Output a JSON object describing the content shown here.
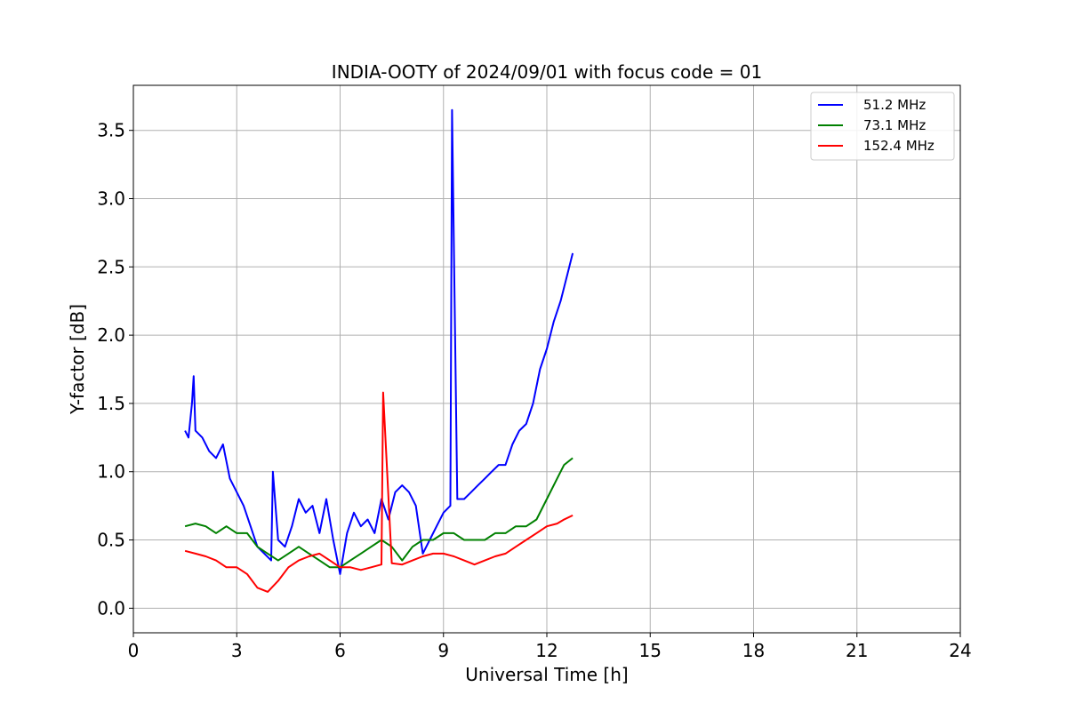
{
  "chart_data": {
    "type": "line",
    "title": "INDIA-OOTY of 2024/09/01 with focus code = 01",
    "xlabel": "Universal Time [h]",
    "ylabel": "Y-factor [dB]",
    "xlim": [
      0,
      24
    ],
    "ylim": [
      -0.18,
      3.83
    ],
    "xticks": [
      0,
      3,
      6,
      9,
      12,
      15,
      18,
      21,
      24
    ],
    "xtick_labels": [
      "0",
      "3",
      "6",
      "9",
      "12",
      "15",
      "18",
      "21",
      "24"
    ],
    "yticks": [
      0.0,
      0.5,
      1.0,
      1.5,
      2.0,
      2.5,
      3.0,
      3.5
    ],
    "ytick_labels": [
      "0.0",
      "0.5",
      "1.0",
      "1.5",
      "2.0",
      "2.5",
      "3.0",
      "3.5"
    ],
    "grid": true,
    "legend_position": "top-right",
    "series": [
      {
        "name": " 51.2 MHz",
        "color": "#0000ff",
        "x": [
          1.5,
          1.6,
          1.7,
          1.75,
          1.8,
          2.0,
          2.2,
          2.4,
          2.6,
          2.8,
          3.0,
          3.2,
          3.4,
          3.6,
          3.8,
          4.0,
          4.05,
          4.2,
          4.4,
          4.6,
          4.8,
          5.0,
          5.2,
          5.4,
          5.6,
          5.8,
          6.0,
          6.2,
          6.4,
          6.6,
          6.8,
          7.0,
          7.2,
          7.4,
          7.6,
          7.8,
          8.0,
          8.2,
          8.4,
          8.6,
          8.8,
          9.0,
          9.2,
          9.25,
          9.4,
          9.6,
          9.8,
          10.0,
          10.2,
          10.4,
          10.6,
          10.8,
          11.0,
          11.2,
          11.4,
          11.6,
          11.8,
          12.0,
          12.2,
          12.4,
          12.6,
          12.75
        ],
        "y": [
          1.3,
          1.25,
          1.5,
          1.7,
          1.3,
          1.25,
          1.15,
          1.1,
          1.2,
          0.95,
          0.85,
          0.75,
          0.6,
          0.45,
          0.4,
          0.35,
          1.0,
          0.5,
          0.45,
          0.6,
          0.8,
          0.7,
          0.75,
          0.55,
          0.8,
          0.5,
          0.25,
          0.55,
          0.7,
          0.6,
          0.65,
          0.55,
          0.8,
          0.65,
          0.85,
          0.9,
          0.85,
          0.75,
          0.4,
          0.5,
          0.6,
          0.7,
          0.75,
          3.65,
          0.8,
          0.8,
          0.85,
          0.9,
          0.95,
          1.0,
          1.05,
          1.05,
          1.2,
          1.3,
          1.35,
          1.5,
          1.75,
          1.9,
          2.1,
          2.25,
          2.45,
          2.6
        ]
      },
      {
        "name": " 73.1 MHz",
        "color": "#008000",
        "x": [
          1.5,
          1.8,
          2.1,
          2.4,
          2.7,
          3.0,
          3.3,
          3.6,
          3.9,
          4.2,
          4.5,
          4.8,
          5.1,
          5.4,
          5.7,
          6.0,
          6.3,
          6.6,
          6.9,
          7.2,
          7.5,
          7.8,
          8.1,
          8.4,
          8.7,
          9.0,
          9.3,
          9.6,
          9.9,
          10.2,
          10.5,
          10.8,
          11.1,
          11.4,
          11.7,
          12.0,
          12.3,
          12.5,
          12.75
        ],
        "y": [
          0.6,
          0.62,
          0.6,
          0.55,
          0.6,
          0.55,
          0.55,
          0.45,
          0.4,
          0.35,
          0.4,
          0.45,
          0.4,
          0.35,
          0.3,
          0.3,
          0.35,
          0.4,
          0.45,
          0.5,
          0.45,
          0.35,
          0.45,
          0.5,
          0.5,
          0.55,
          0.55,
          0.5,
          0.5,
          0.5,
          0.55,
          0.55,
          0.6,
          0.6,
          0.65,
          0.8,
          0.95,
          1.05,
          1.1
        ]
      },
      {
        "name": " 152.4 MHz",
        "color": "#ff0000",
        "x": [
          1.5,
          1.8,
          2.1,
          2.4,
          2.7,
          3.0,
          3.3,
          3.6,
          3.9,
          4.2,
          4.5,
          4.8,
          5.1,
          5.4,
          5.7,
          6.0,
          6.3,
          6.6,
          6.9,
          7.2,
          7.25,
          7.5,
          7.8,
          8.1,
          8.4,
          8.7,
          9.0,
          9.3,
          9.6,
          9.9,
          10.2,
          10.5,
          10.8,
          11.1,
          11.4,
          11.7,
          12.0,
          12.3,
          12.5,
          12.75
        ],
        "y": [
          0.42,
          0.4,
          0.38,
          0.35,
          0.3,
          0.3,
          0.25,
          0.15,
          0.12,
          0.2,
          0.3,
          0.35,
          0.38,
          0.4,
          0.35,
          0.3,
          0.3,
          0.28,
          0.3,
          0.32,
          1.58,
          0.33,
          0.32,
          0.35,
          0.38,
          0.4,
          0.4,
          0.38,
          0.35,
          0.32,
          0.35,
          0.38,
          0.4,
          0.45,
          0.5,
          0.55,
          0.6,
          0.62,
          0.65,
          0.68
        ]
      }
    ]
  }
}
